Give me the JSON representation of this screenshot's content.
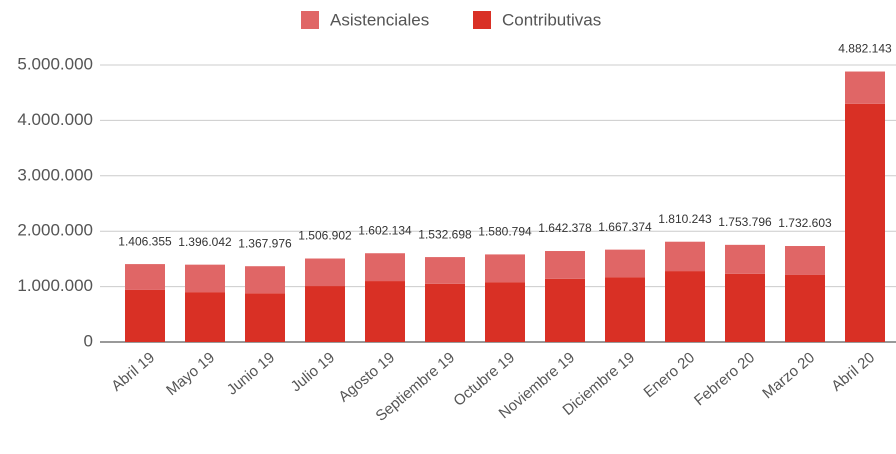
{
  "chart_data": {
    "type": "stacked_bar",
    "categories": [
      "Abril 19",
      "Mayo 19",
      "Junio 19",
      "Julio 19",
      "Agosto 19",
      "Septiembre 19",
      "Octubre 19",
      "Noviembre 19",
      "Diciembre 19",
      "Enero 20",
      "Febrero 20",
      "Marzo 20",
      "Abril 20"
    ],
    "series": [
      {
        "name": "Contributivas",
        "color": "#d93025",
        "values": [
          940000,
          900000,
          880000,
          1010000,
          1100000,
          1050000,
          1080000,
          1140000,
          1170000,
          1280000,
          1230000,
          1210000,
          4300000
        ]
      },
      {
        "name": "Asistenciales",
        "color": "#e06666",
        "values": [
          466355,
          496042,
          487976,
          496902,
          502134,
          482698,
          500794,
          502378,
          497374,
          530243,
          523796,
          522603,
          582143
        ]
      }
    ],
    "totals": [
      1406355,
      1396042,
      1367976,
      1506902,
      1602134,
      1532698,
      1580794,
      1642378,
      1667374,
      1810243,
      1753796,
      1732603,
      4882143
    ],
    "total_labels": [
      "1.406.355",
      "1.396.042",
      "1.367.976",
      "1.506.902",
      "1.602.134",
      "1.532.698",
      "1.580.794",
      "1.642.378",
      "1.667.374",
      "1.810.243",
      "1.753.796",
      "1.732.603",
      "4.882.143"
    ],
    "ylim": [
      0,
      5000000
    ],
    "yticks": [
      0,
      {
        "value": 1000000,
        "label": "1.000.000"
      },
      {
        "value": 2000000,
        "label": "2.000.000"
      },
      {
        "value": 3000000,
        "label": "3.000.000"
      },
      {
        "value": 4000000,
        "label": "4.000.000"
      },
      {
        "value": 5000000,
        "label": "5.000.000"
      }
    ],
    "grid": true,
    "legend": "top"
  }
}
